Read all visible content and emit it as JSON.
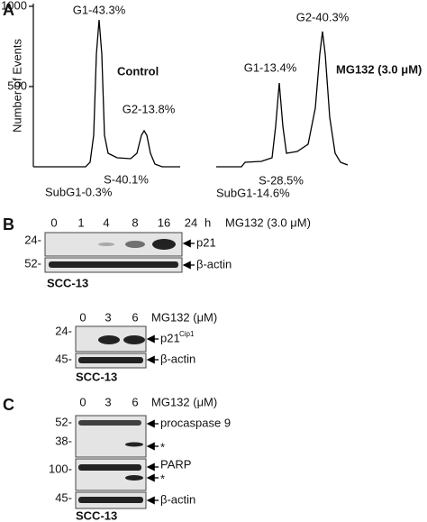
{
  "panel_a": {
    "label": "A",
    "y_axis_label": "Number of Events",
    "y_ticks": [
      "1000",
      "500"
    ],
    "control": {
      "title": "Control",
      "g1": "G1-43.3%",
      "g2": "G2-13.8%",
      "s": "S-40.1%",
      "subg1": "SubG1-0.3%"
    },
    "treated": {
      "title": "MG132 (3.0 μM)",
      "g1": "G1-13.4%",
      "g2": "G2-40.3%",
      "s": "S-28.5%",
      "subg1": "SubG1-14.6%"
    }
  },
  "panel_b": {
    "label": "B",
    "blot1": {
      "lanes": [
        "0",
        "1",
        "4",
        "8",
        "16",
        "24"
      ],
      "lane_unit": "h",
      "treatment": "MG132 (3.0 μM)",
      "markers": [
        "24-",
        "52-"
      ],
      "proteins": [
        "p21",
        "β-actin"
      ],
      "cell_line": "SCC-13"
    },
    "blot2": {
      "lanes": [
        "0",
        "3",
        "6"
      ],
      "treatment": "MG132 (μM)",
      "markers": [
        "24-",
        "45-"
      ],
      "proteins": [
        "p21",
        "β-actin"
      ],
      "protein_superscript": "Cip1",
      "cell_line": "SCC-13"
    }
  },
  "panel_c": {
    "label": "C",
    "lanes": [
      "0",
      "3",
      "6"
    ],
    "treatment": "MG132 (μM)",
    "markers": [
      "52-",
      "38-",
      "100-",
      "45-"
    ],
    "proteins": [
      "procaspase 9",
      "*",
      "PARP",
      "*",
      "β-actin"
    ],
    "cell_line": "SCC-13"
  }
}
